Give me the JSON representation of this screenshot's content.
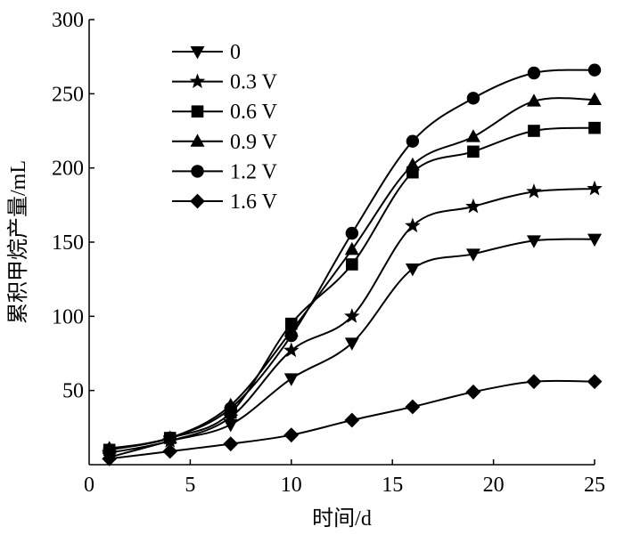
{
  "chart_data": {
    "type": "line",
    "xlabel": "时间/d",
    "ylabel": "累积甲烷产量/mL",
    "xlim": [
      0,
      25
    ],
    "ylim": [
      0,
      300
    ],
    "xticks": [
      "0",
      "5",
      "10",
      "15",
      "20",
      "25"
    ],
    "yticks": [
      "50",
      "100",
      "150",
      "200",
      "250",
      "300"
    ],
    "grid": false,
    "legend_position": "top-left",
    "x": [
      1,
      4,
      7,
      10,
      13,
      16,
      19,
      22,
      25
    ],
    "series": [
      {
        "name": "0",
        "marker": "triangle-down",
        "values": [
          5,
          16,
          27,
          58,
          82,
          132,
          142,
          151,
          152
        ]
      },
      {
        "name": "0.3 V",
        "marker": "star",
        "values": [
          8,
          16,
          32,
          77,
          100,
          161,
          174,
          184,
          186
        ]
      },
      {
        "name": "0.6 V",
        "marker": "square",
        "values": [
          10,
          18,
          35,
          95,
          135,
          197,
          211,
          225,
          227
        ]
      },
      {
        "name": "0.9 V",
        "marker": "triangle-up",
        "values": [
          11,
          18,
          40,
          90,
          145,
          202,
          221,
          245,
          246
        ]
      },
      {
        "name": "1.2 V",
        "marker": "circle",
        "values": [
          10,
          18,
          38,
          87,
          156,
          218,
          247,
          264,
          266
        ]
      },
      {
        "name": "1.6 V",
        "marker": "diamond",
        "values": [
          4,
          9,
          14,
          20,
          30,
          39,
          49,
          56,
          56
        ]
      }
    ]
  }
}
